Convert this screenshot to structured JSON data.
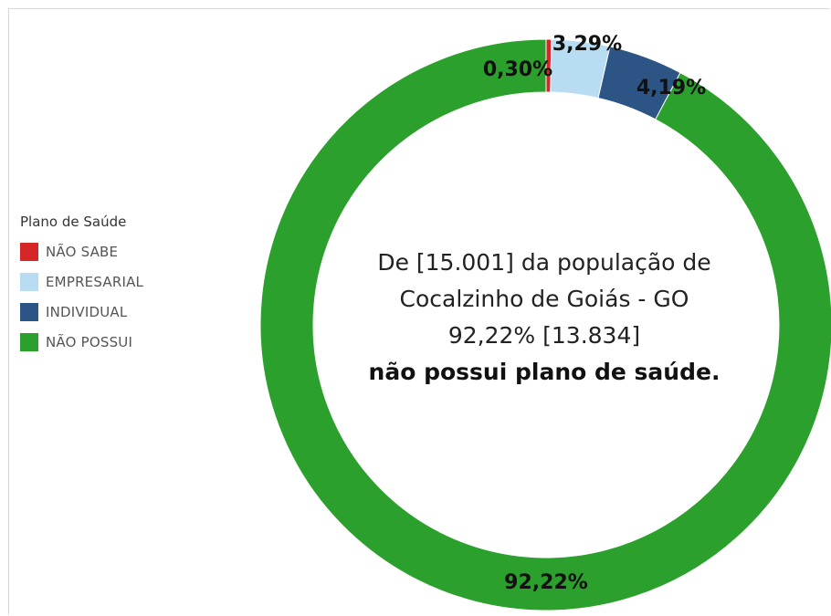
{
  "chart_data": {
    "type": "pie",
    "variant": "donut",
    "legend": {
      "title": "Plano de Saúde",
      "placement": "left"
    },
    "slices": [
      {
        "name": "NÃO SABE",
        "value": 0.3,
        "label": "0,30%",
        "color": "#d62728"
      },
      {
        "name": "EMPRESARIAL",
        "value": 3.29,
        "label": "3,29%",
        "color": "#b8dcf2"
      },
      {
        "name": "INDIVIDUAL",
        "value": 4.19,
        "label": "4,19%",
        "color": "#2c5485"
      },
      {
        "name": "NÃO POSSUI",
        "value": 92.22,
        "label": "92,22%",
        "color": "#2ca02c"
      }
    ]
  },
  "center": {
    "line1": "De [15.001] da população de",
    "line2": "Cocalzinho de Goiás - GO",
    "line3": "92,22% [13.834]",
    "line4": "não possui plano de saúde."
  }
}
